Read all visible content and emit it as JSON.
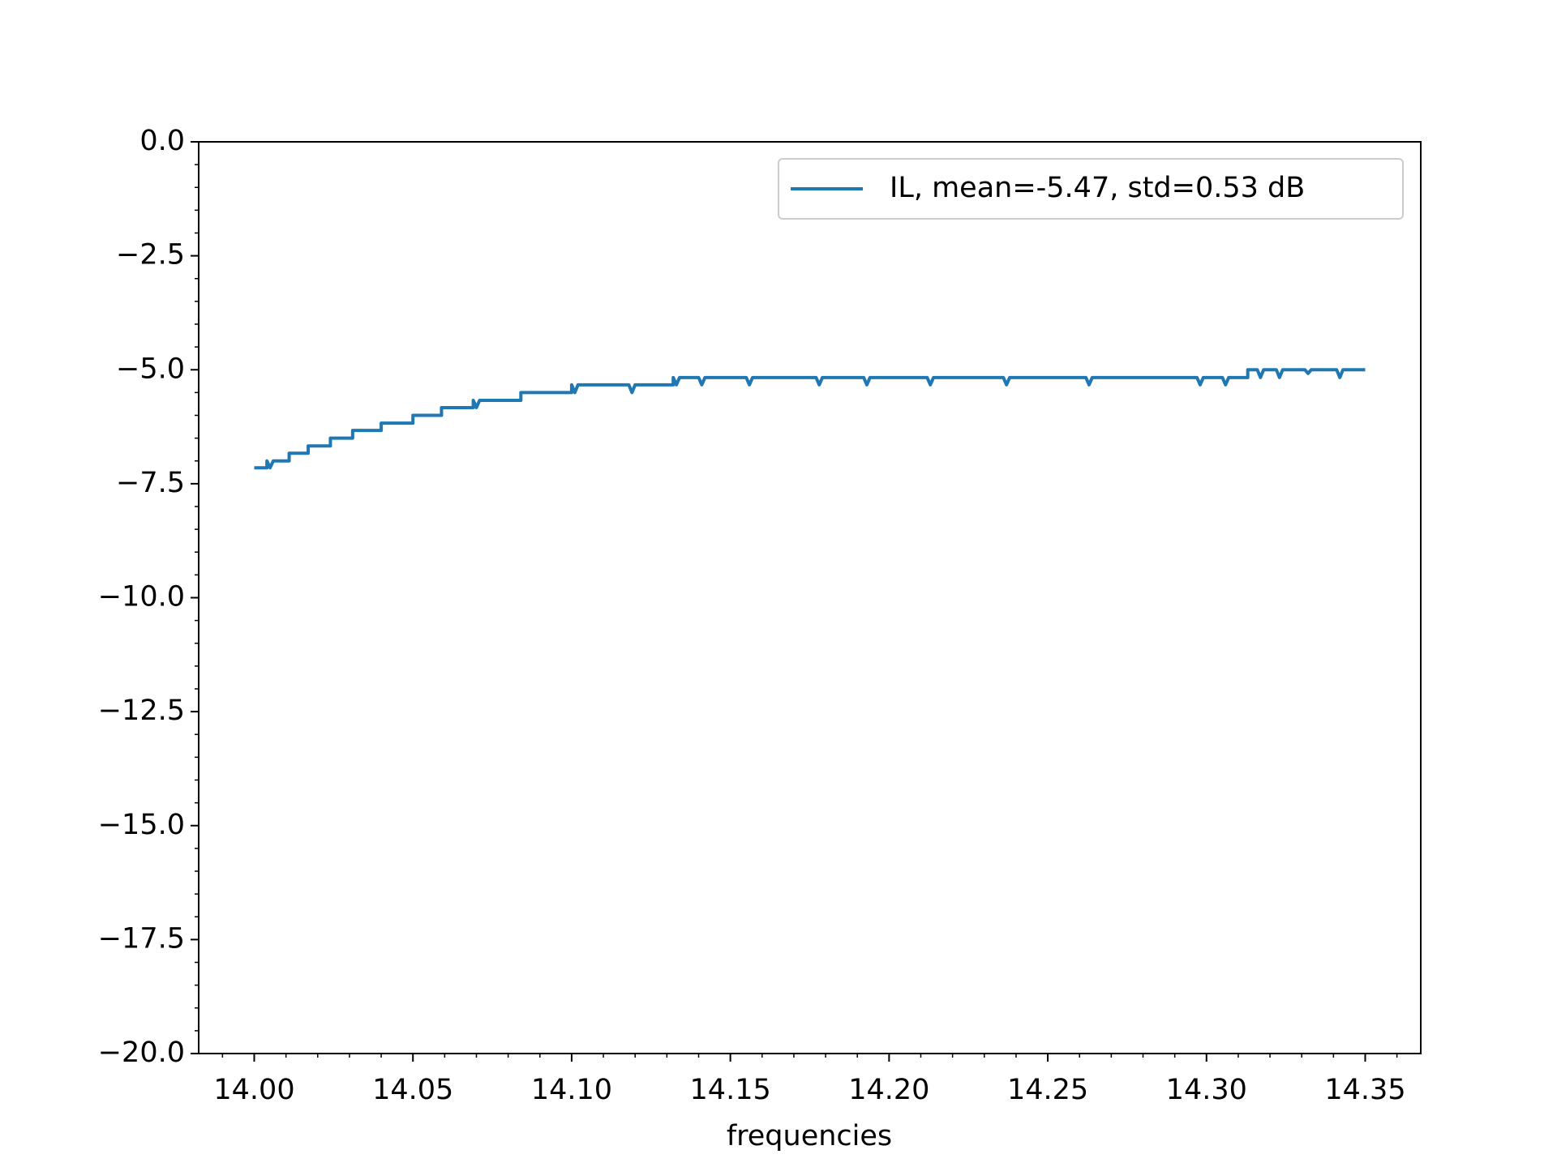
{
  "chart_data": {
    "type": "line",
    "xlabel": "frequencies",
    "x": [
      14.0,
      14.004,
      14.004,
      14.005,
      14.006,
      14.011,
      14.011,
      14.017,
      14.017,
      14.024,
      14.024,
      14.031,
      14.031,
      14.04,
      14.04,
      14.05,
      14.05,
      14.059,
      14.059,
      14.069,
      14.069,
      14.07,
      14.071,
      14.084,
      14.084,
      14.1,
      14.1,
      14.101,
      14.102,
      14.118,
      14.119,
      14.12,
      14.132,
      14.132,
      14.133,
      14.134,
      14.14,
      14.141,
      14.142,
      14.155,
      14.156,
      14.157,
      14.177,
      14.178,
      14.179,
      14.192,
      14.193,
      14.194,
      14.212,
      14.213,
      14.214,
      14.236,
      14.237,
      14.238,
      14.262,
      14.263,
      14.264,
      14.297,
      14.298,
      14.299,
      14.305,
      14.306,
      14.307,
      14.313,
      14.313,
      14.316,
      14.317,
      14.318,
      14.322,
      14.323,
      14.324,
      14.331,
      14.332,
      14.333,
      14.341,
      14.342,
      14.343,
      14.35
    ],
    "series": [
      {
        "name": "IL, mean=-5.47, std=0.53 dB",
        "color": "#1f77b4",
        "values": [
          -7.15,
          -7.15,
          -7.0,
          -7.15,
          -7.0,
          -7.0,
          -6.83,
          -6.83,
          -6.67,
          -6.67,
          -6.5,
          -6.5,
          -6.33,
          -6.33,
          -6.17,
          -6.17,
          -6.0,
          -6.0,
          -5.83,
          -5.83,
          -5.67,
          -5.83,
          -5.67,
          -5.67,
          -5.5,
          -5.5,
          -5.33,
          -5.5,
          -5.33,
          -5.33,
          -5.5,
          -5.33,
          -5.33,
          -5.17,
          -5.33,
          -5.17,
          -5.17,
          -5.33,
          -5.17,
          -5.17,
          -5.33,
          -5.17,
          -5.17,
          -5.33,
          -5.17,
          -5.17,
          -5.33,
          -5.17,
          -5.17,
          -5.33,
          -5.17,
          -5.17,
          -5.33,
          -5.17,
          -5.17,
          -5.33,
          -5.17,
          -5.17,
          -5.33,
          -5.17,
          -5.17,
          -5.33,
          -5.17,
          -5.17,
          -5.0,
          -5.0,
          -5.17,
          -5.0,
          -5.0,
          -5.17,
          -5.0,
          -5.0,
          -5.08,
          -5.0,
          -5.0,
          -5.17,
          -5.0,
          -5.0
        ]
      }
    ],
    "xlim": [
      13.9825,
      14.3675
    ],
    "ylim": [
      -20,
      0
    ],
    "xticks": [
      {
        "value": 14.0,
        "label": "14.00"
      },
      {
        "value": 14.05,
        "label": "14.05"
      },
      {
        "value": 14.1,
        "label": "14.10"
      },
      {
        "value": 14.15,
        "label": "14.15"
      },
      {
        "value": 14.2,
        "label": "14.20"
      },
      {
        "value": 14.25,
        "label": "14.25"
      },
      {
        "value": 14.3,
        "label": "14.30"
      },
      {
        "value": 14.35,
        "label": "14.35"
      }
    ],
    "yticks": [
      {
        "value": 0,
        "label": "0.0"
      },
      {
        "value": -2.5,
        "label": "−2.5"
      },
      {
        "value": -5,
        "label": "−5.0"
      },
      {
        "value": -7.5,
        "label": "−7.5"
      },
      {
        "value": -10,
        "label": "−10.0"
      },
      {
        "value": -12.5,
        "label": "−12.5"
      },
      {
        "value": -15,
        "label": "−15.0"
      },
      {
        "value": -17.5,
        "label": "−17.5"
      },
      {
        "value": -20,
        "label": "−20.0"
      }
    ],
    "xminorticks": [
      13.99,
      14.01,
      14.02,
      14.03,
      14.04,
      14.06,
      14.07,
      14.08,
      14.09,
      14.11,
      14.12,
      14.13,
      14.14,
      14.16,
      14.17,
      14.18,
      14.19,
      14.21,
      14.22,
      14.23,
      14.24,
      14.26,
      14.27,
      14.28,
      14.29,
      14.31,
      14.32,
      14.33,
      14.34,
      14.36
    ],
    "yminorticks": [
      -0.5,
      -1,
      -1.5,
      -2,
      -3,
      -3.5,
      -4,
      -4.5,
      -5.5,
      -6,
      -6.5,
      -7,
      -8,
      -8.5,
      -9,
      -9.5,
      -10.5,
      -11,
      -11.5,
      -12,
      -13,
      -13.5,
      -14,
      -14.5,
      -15.5,
      -16,
      -16.5,
      -17,
      -18,
      -18.5,
      -19,
      -19.5
    ],
    "legend": "upper right",
    "grid": false
  }
}
